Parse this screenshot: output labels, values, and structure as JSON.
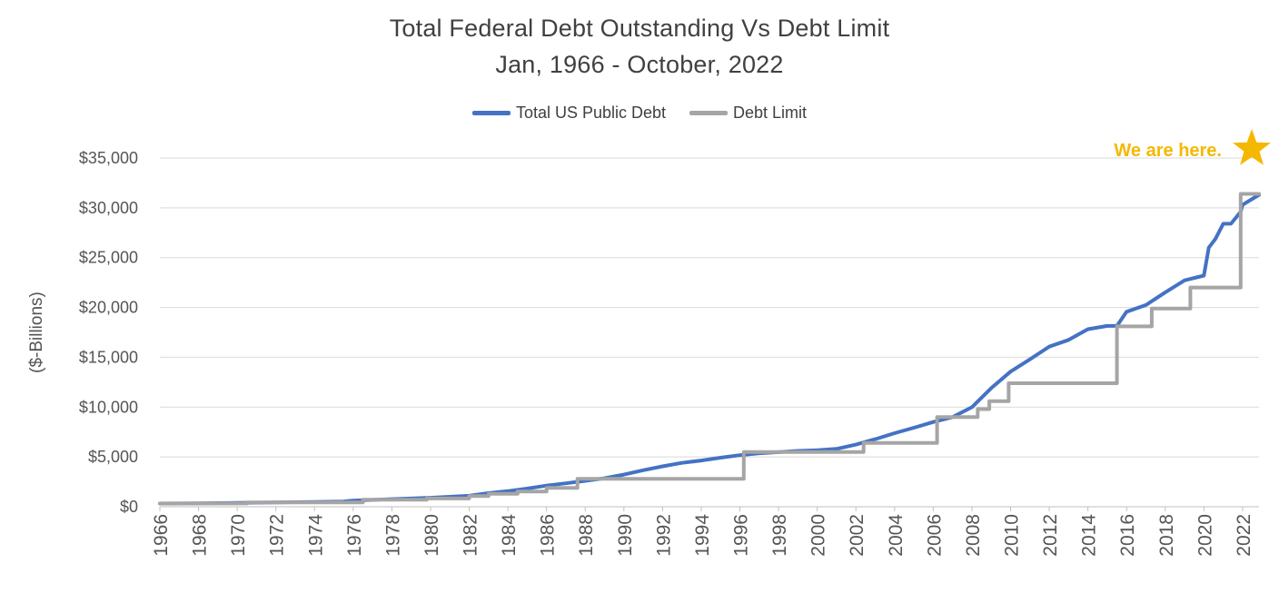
{
  "chart_data": {
    "type": "line",
    "title": "Total Federal Debt Outstanding Vs Debt Limit",
    "subtitle": "Jan, 1966 - October, 2022",
    "ylabel": "($-Billions)",
    "xlabel": "",
    "xlim": [
      1966,
      2022.85
    ],
    "ylim": [
      0,
      35000
    ],
    "y_ticks": [
      "$0",
      "$5,000",
      "$10,000",
      "$15,000",
      "$20,000",
      "$25,000",
      "$30,000",
      "$35,000"
    ],
    "x_ticks": [
      "1966",
      "1968",
      "1970",
      "1972",
      "1974",
      "1976",
      "1978",
      "1980",
      "1982",
      "1984",
      "1986",
      "1988",
      "1990",
      "1992",
      "1994",
      "1996",
      "1998",
      "2000",
      "2002",
      "2004",
      "2006",
      "2008",
      "2010",
      "2012",
      "2014",
      "2016",
      "2018",
      "2020",
      "2022"
    ],
    "grid": "horizontal",
    "legend": "top",
    "annotation": {
      "text": "We are here.",
      "color": "#F5B800"
    },
    "series": [
      {
        "name": "Total US Public Debt",
        "color": "#4472C4",
        "points": [
          [
            1966,
            320
          ],
          [
            1968,
            350
          ],
          [
            1970,
            380
          ],
          [
            1972,
            430
          ],
          [
            1974,
            480
          ],
          [
            1975.5,
            530
          ],
          [
            1976,
            620
          ],
          [
            1978,
            770
          ],
          [
            1980,
            900
          ],
          [
            1982,
            1100
          ],
          [
            1983,
            1370
          ],
          [
            1984,
            1570
          ],
          [
            1985,
            1820
          ],
          [
            1986,
            2120
          ],
          [
            1987,
            2350
          ],
          [
            1988,
            2600
          ],
          [
            1989,
            2860
          ],
          [
            1990,
            3230
          ],
          [
            1991,
            3660
          ],
          [
            1992,
            4060
          ],
          [
            1993,
            4400
          ],
          [
            1994,
            4640
          ],
          [
            1995,
            4920
          ],
          [
            1996,
            5180
          ],
          [
            1997,
            5370
          ],
          [
            1998,
            5480
          ],
          [
            1999,
            5610
          ],
          [
            2000,
            5680
          ],
          [
            2001,
            5810
          ],
          [
            2002,
            6230
          ],
          [
            2003,
            6780
          ],
          [
            2004,
            7380
          ],
          [
            2005,
            7930
          ],
          [
            2006,
            8500
          ],
          [
            2007,
            9000
          ],
          [
            2008,
            9990
          ],
          [
            2009,
            11900
          ],
          [
            2010,
            13560
          ],
          [
            2011,
            14790
          ],
          [
            2012,
            16070
          ],
          [
            2013,
            16740
          ],
          [
            2014,
            17820
          ],
          [
            2015,
            18150
          ],
          [
            2015.5,
            18150
          ],
          [
            2016,
            19570
          ],
          [
            2017,
            20240
          ],
          [
            2018,
            21520
          ],
          [
            2019,
            22720
          ],
          [
            2020,
            23200
          ],
          [
            2020.25,
            26000
          ],
          [
            2020.6,
            26900
          ],
          [
            2021,
            28400
          ],
          [
            2021.4,
            28400
          ],
          [
            2021.9,
            29600
          ],
          [
            2022,
            30300
          ],
          [
            2022.5,
            30900
          ],
          [
            2022.85,
            31300
          ]
        ]
      },
      {
        "name": "Debt Limit",
        "color": "#A5A5A5",
        "points": [
          [
            1966,
            328
          ],
          [
            1970.5,
            328
          ],
          [
            1970.5,
            430
          ],
          [
            1976.5,
            430
          ],
          [
            1976.5,
            700
          ],
          [
            1979.8,
            700
          ],
          [
            1979.8,
            830
          ],
          [
            1982,
            830
          ],
          [
            1982,
            1080
          ],
          [
            1983,
            1080
          ],
          [
            1983,
            1300
          ],
          [
            1984.5,
            1300
          ],
          [
            1984.5,
            1520
          ],
          [
            1986,
            1520
          ],
          [
            1986,
            1900
          ],
          [
            1987.6,
            1900
          ],
          [
            1987.6,
            2800
          ],
          [
            1990,
            2800
          ],
          [
            1996.2,
            2800
          ],
          [
            1996.2,
            5500
          ],
          [
            2002.4,
            5500
          ],
          [
            2002.4,
            6400
          ],
          [
            2006.2,
            6400
          ],
          [
            2006.2,
            9000
          ],
          [
            2008.3,
            9000
          ],
          [
            2008.3,
            9800
          ],
          [
            2008.9,
            9800
          ],
          [
            2008.9,
            10600
          ],
          [
            2009.9,
            10600
          ],
          [
            2009.9,
            12400
          ],
          [
            2015.5,
            12400
          ],
          [
            2015.5,
            18100
          ],
          [
            2017.3,
            18100
          ],
          [
            2017.3,
            19900
          ],
          [
            2019.3,
            19900
          ],
          [
            2019.3,
            22000
          ],
          [
            2021.9,
            22000
          ],
          [
            2021.9,
            31400
          ],
          [
            2022.85,
            31400
          ]
        ]
      }
    ]
  }
}
